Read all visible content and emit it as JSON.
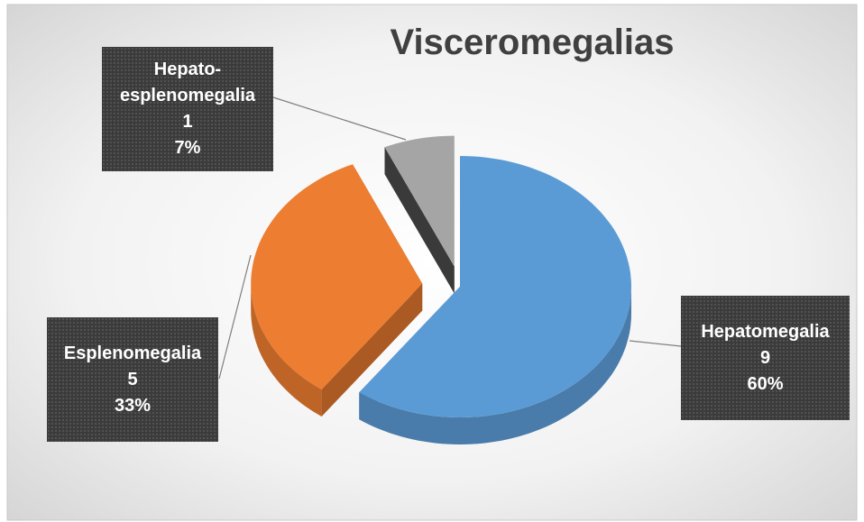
{
  "chart_data": {
    "type": "pie",
    "title": "Visceromegalias",
    "categories": [
      "Hepatomegalia",
      "Esplenomegalia",
      "Hepato-esplenomegalia"
    ],
    "values": [
      9,
      5,
      1
    ],
    "percent_labels": [
      "60%",
      "33%",
      "7%"
    ],
    "series": [
      {
        "colors": [
          "#5b9bd5",
          "#ed7d31",
          "#a5a5a5"
        ]
      }
    ]
  }
}
